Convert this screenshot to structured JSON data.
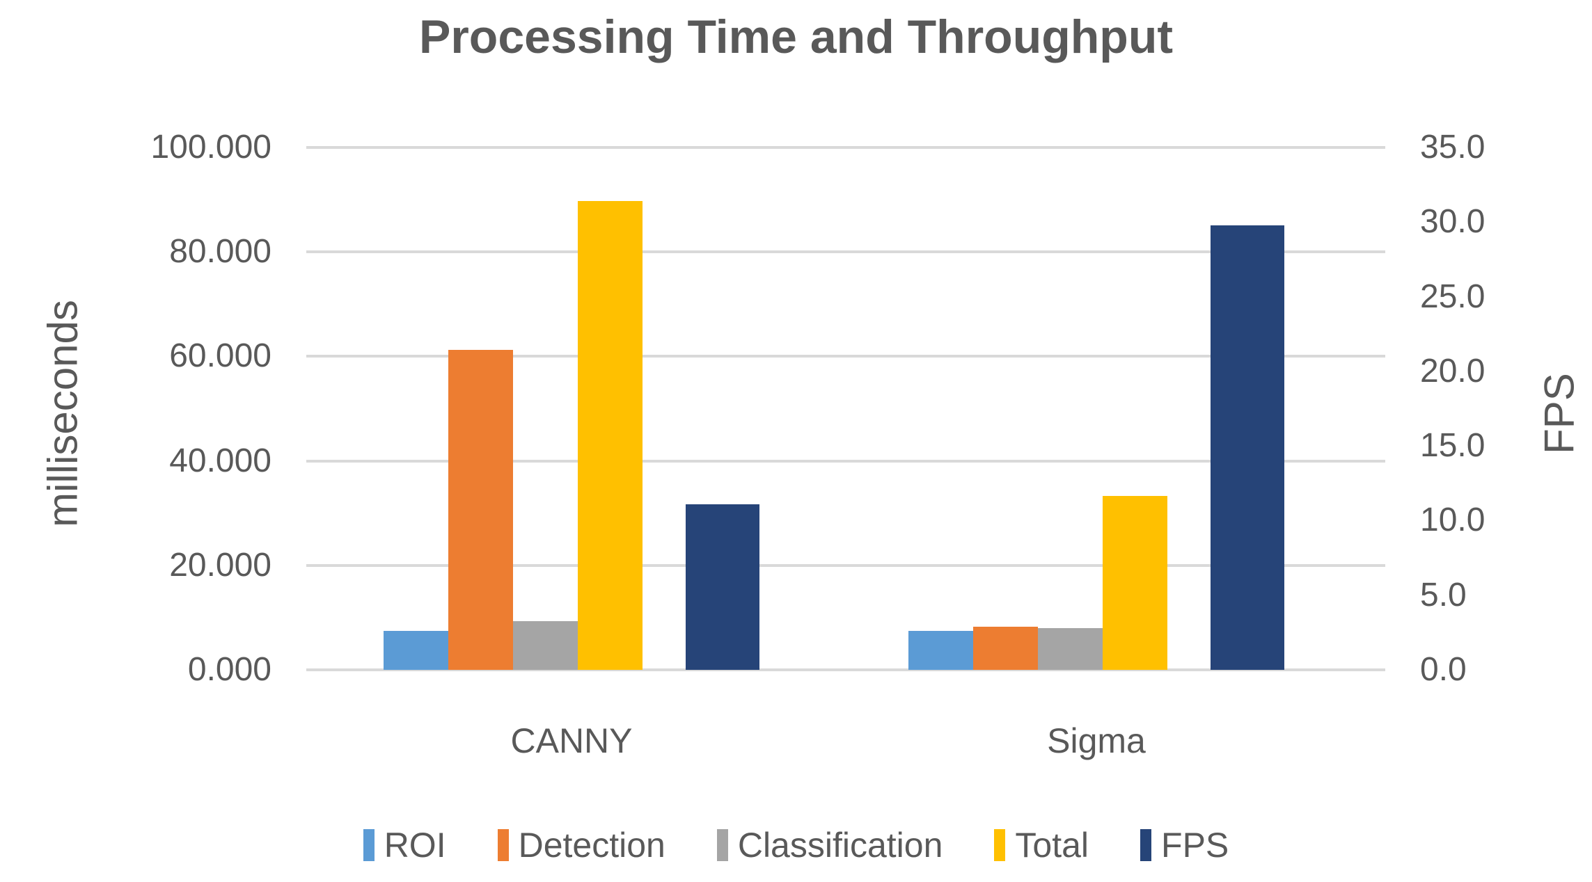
{
  "chart_data": {
    "type": "bar",
    "title": "Processing Time and Throughput",
    "categories": [
      "CANNY",
      "Sigma"
    ],
    "series": [
      {
        "name": "ROI",
        "axis": "left",
        "color": "#5b9bd5",
        "values": [
          7.5,
          7.5
        ]
      },
      {
        "name": "Detection",
        "axis": "left",
        "color": "#ed7d31",
        "values": [
          61.3,
          8.3
        ]
      },
      {
        "name": "Classification",
        "axis": "left",
        "color": "#a5a5a5",
        "values": [
          9.3,
          8.0
        ]
      },
      {
        "name": "Total",
        "axis": "left",
        "color": "#ffc000",
        "values": [
          89.7,
          33.3
        ]
      },
      {
        "name": "FPS",
        "axis": "right",
        "color": "#264478",
        "values": [
          11.1,
          29.8
        ]
      }
    ],
    "left_axis": {
      "label": "milliseconds",
      "min": 0,
      "max": 100,
      "ticks": [
        "0.000",
        "20.000",
        "40.000",
        "60.000",
        "80.000",
        "100.000"
      ]
    },
    "right_axis": {
      "label": "FPS",
      "min": 0,
      "max": 35,
      "ticks": [
        "0.0",
        "5.0",
        "10.0",
        "15.0",
        "20.0",
        "25.0",
        "30.0",
        "35.0"
      ]
    },
    "grid": true,
    "legend_position": "bottom",
    "colors": {
      "text": "#595959",
      "gridline": "#d9d9d9",
      "background": "#ffffff"
    }
  }
}
